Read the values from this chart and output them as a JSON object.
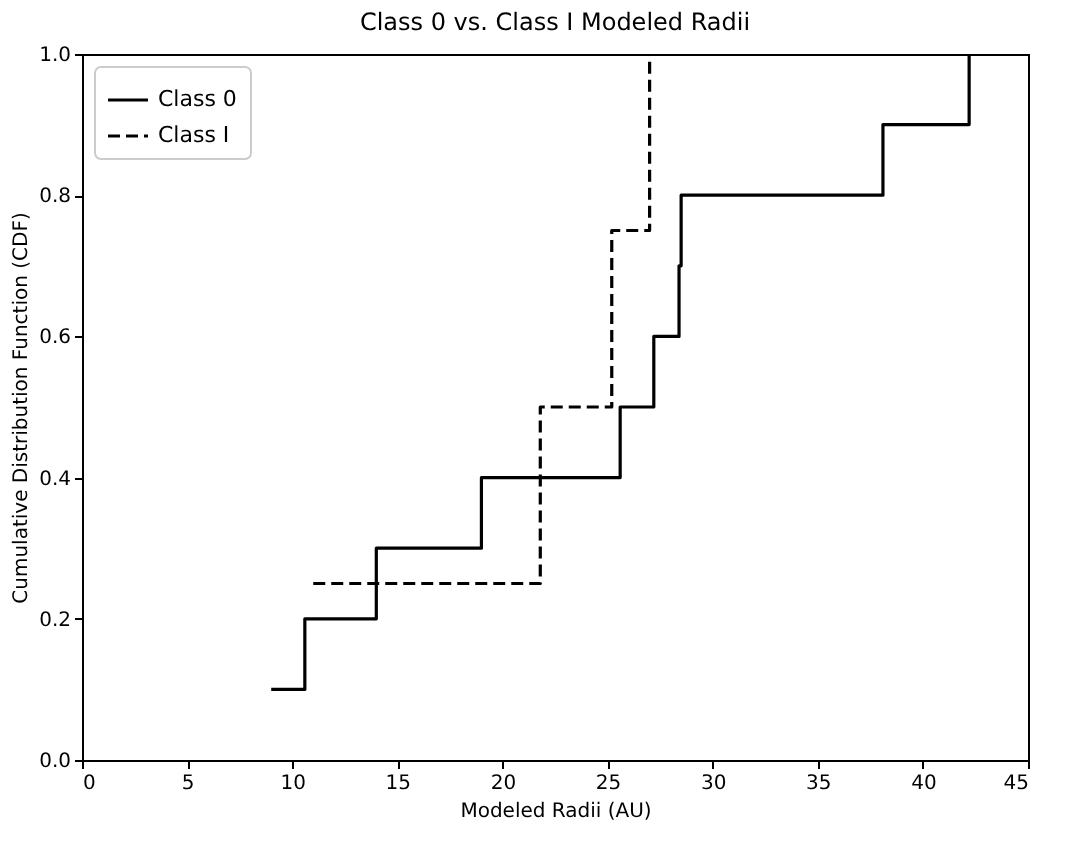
{
  "chart_data": {
    "type": "step",
    "title": "Class 0 vs. Class I Modeled Radii",
    "xlabel": "Modeled Radii (AU)",
    "ylabel": "Cumulative Distribution Function (CDF)",
    "xlim": [
      0,
      45
    ],
    "xticks": [
      0,
      5,
      10,
      15,
      20,
      25,
      30,
      35,
      40,
      45
    ],
    "ylim": [
      0,
      1
    ],
    "yticks": [
      {
        "value": 0,
        "label": "0.0"
      },
      0.2,
      0.4,
      0.6,
      0.8,
      {
        "value": 1,
        "label": "1.0"
      }
    ],
    "legend": "top left",
    "grid": false,
    "series": [
      {
        "name": "Class 0",
        "color": "#000000",
        "line_style": "solid",
        "x": [
          9.0,
          10.6,
          14.0,
          19.0,
          25.6,
          27.2,
          28.4,
          28.5,
          38.1,
          42.2
        ],
        "values": [
          0.1,
          0.2,
          0.3,
          0.4,
          0.5,
          0.6,
          0.7,
          0.8,
          0.9,
          1.0
        ]
      },
      {
        "name": "Class I",
        "color": "#000000",
        "line_style": "dashed",
        "x": [
          11.0,
          21.8,
          25.2,
          27.0
        ],
        "values": [
          0.25,
          0.5,
          0.75,
          1.0
        ]
      }
    ]
  }
}
